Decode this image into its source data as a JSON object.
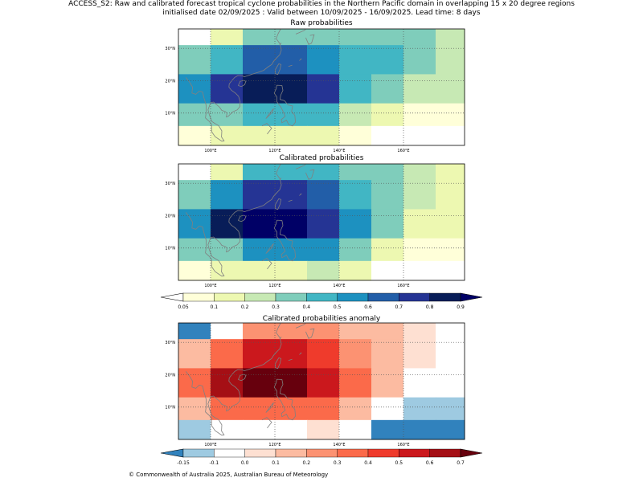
{
  "figure": {
    "title_line1": "ACCESS_S2: Raw and calibrated forecast tropical cyclone probabilities in the Northern Pacific domain in overlapping 15 x 20 degree regions",
    "title_line2": "initialised date 02/09/2025 :  Valid between 10/09/2025 - 16/09/2025. Lead time: 8 days",
    "footer": "© Commonwealth of Australia 2025, Australian Bureau of Meteorology"
  },
  "axes": {
    "lon_ticks": [
      "100°E",
      "120°E",
      "140°E",
      "160°E"
    ],
    "lat_ticks": [
      "30°N",
      "20°N",
      "10°N"
    ]
  },
  "colors": {
    "prob_scale": [
      "#ffffff",
      "#ffffd9",
      "#edf8b1",
      "#c7e9b4",
      "#7fcdbb",
      "#41b6c4",
      "#1d91c0",
      "#225ea8",
      "#253494",
      "#081d58",
      "#000066"
    ],
    "anom_scale": [
      "#3182bd",
      "#9ecae1",
      "#ffffff",
      "#fee0d2",
      "#fcbba1",
      "#fc9272",
      "#fb6a4a",
      "#ef3b2c",
      "#cb181d",
      "#a50f15",
      "#67000d"
    ],
    "coastline": "#808080"
  },
  "panels": {
    "raw": {
      "title": "Raw probabilities",
      "grid": [
        [
          0,
          2,
          4,
          4,
          4,
          4,
          4,
          4,
          3
        ],
        [
          4,
          5,
          7,
          7,
          6,
          5,
          5,
          4,
          3
        ],
        [
          6,
          8,
          9,
          9,
          8,
          5,
          4,
          3,
          3
        ],
        [
          4,
          4,
          5,
          5,
          5,
          3,
          2,
          1,
          1
        ],
        [
          1,
          2,
          2,
          2,
          2,
          1,
          0,
          0,
          0
        ]
      ]
    },
    "calibrated": {
      "title": "Calibrated probabilities",
      "grid": [
        [
          0,
          2,
          5,
          5,
          5,
          4,
          4,
          3,
          2
        ],
        [
          4,
          6,
          8,
          8,
          7,
          5,
          4,
          3,
          2
        ],
        [
          6,
          9,
          10,
          10,
          8,
          6,
          4,
          2,
          2
        ],
        [
          4,
          4,
          6,
          6,
          6,
          4,
          2,
          1,
          1
        ],
        [
          1,
          2,
          2,
          2,
          3,
          2,
          0,
          0,
          0
        ]
      ]
    },
    "anomaly": {
      "title": "Calibrated probabilities anomaly",
      "grid": [
        [
          0,
          2,
          5,
          5,
          5,
          4,
          4,
          3,
          2
        ],
        [
          4,
          6,
          8,
          8,
          7,
          5,
          4,
          3,
          2
        ],
        [
          6,
          9,
          10,
          10,
          8,
          6,
          4,
          2,
          2
        ],
        [
          4,
          6,
          6,
          6,
          6,
          4,
          2,
          1,
          1
        ],
        [
          1,
          2,
          2,
          2,
          3,
          2,
          0,
          0,
          0
        ]
      ]
    }
  },
  "colorbars": {
    "prob_labels": [
      "0.05",
      "0.1",
      "0.2",
      "0.3",
      "0.4",
      "0.5",
      "0.6",
      "0.7",
      "0.8",
      "0.9"
    ],
    "anom_labels": [
      "-0.15",
      "-0.1",
      "0.0",
      "0.1",
      "0.2",
      "0.3",
      "0.4",
      "0.5",
      "0.6",
      "0.7"
    ]
  }
}
